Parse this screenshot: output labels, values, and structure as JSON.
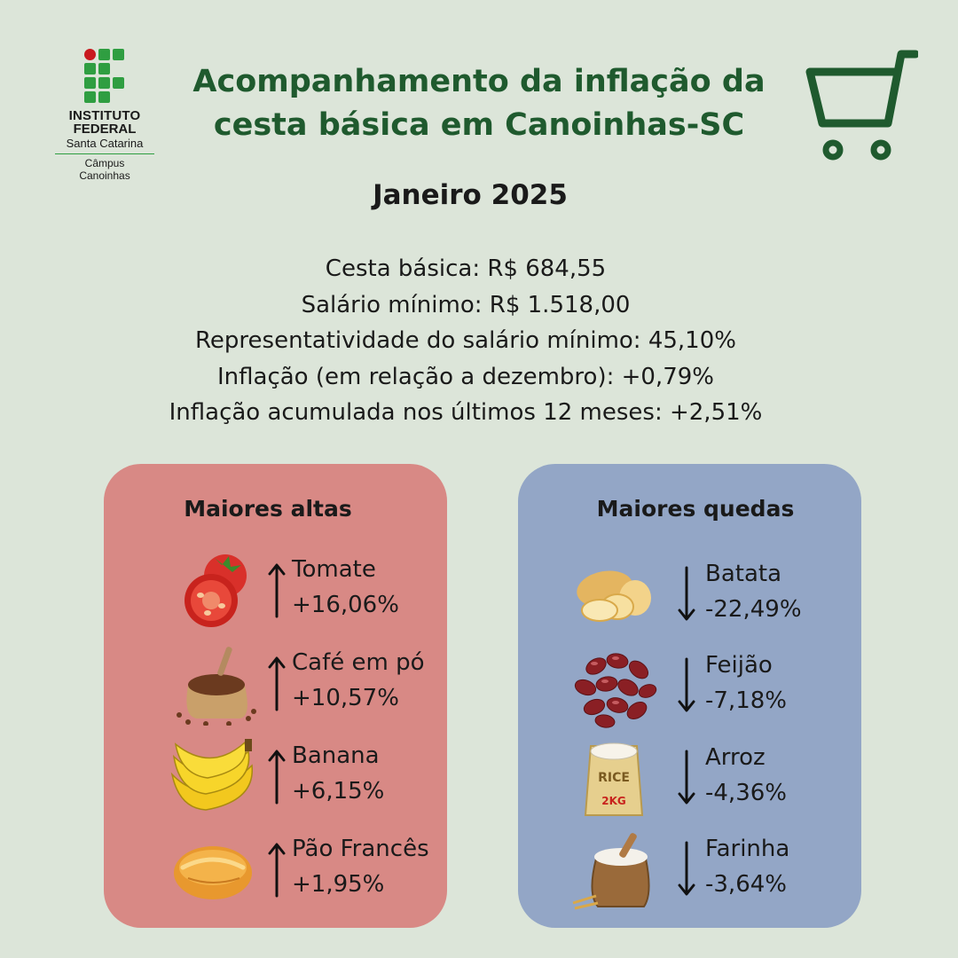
{
  "logo": {
    "line1": "INSTITUTO",
    "line2": "FEDERAL",
    "line3": "Santa Catarina",
    "line4": "Câmpus",
    "line5": "Canoinhas"
  },
  "header": {
    "title_line1": "Acompanhamento da inflação da",
    "title_line2": "cesta básica em Canoinhas-SC",
    "cart_icon": "shopping-cart-icon"
  },
  "month": "Janeiro 2025",
  "stats": [
    "Cesta básica: R$ 684,55",
    "Salário mínimo: R$ 1.518,00",
    "Representatividade do salário mínimo: 45,10%",
    "Inflação (em relação a dezembro): +0,79%",
    "Inflação acumulada nos últimos 12 meses: +2,51%"
  ],
  "altas": {
    "title": "Maiores altas",
    "items": [
      {
        "name": "Tomate",
        "value": "+16,06%",
        "icon": "tomato-icon"
      },
      {
        "name": "Café em pó",
        "value": "+10,57%",
        "icon": "coffee-sack-icon"
      },
      {
        "name": "Banana",
        "value": "+6,15%",
        "icon": "banana-icon"
      },
      {
        "name": "Pão Francês",
        "value": "+1,95%",
        "icon": "bread-roll-icon"
      }
    ]
  },
  "quedas": {
    "title": "Maiores quedas",
    "items": [
      {
        "name": "Batata",
        "value": "-22,49%",
        "icon": "potato-icon"
      },
      {
        "name": "Feijão",
        "value": "-7,18%",
        "icon": "beans-icon"
      },
      {
        "name": "Arroz",
        "value": "-4,36%",
        "icon": "rice-sack-icon"
      },
      {
        "name": "Farinha",
        "value": "-3,64%",
        "icon": "flour-sack-icon"
      }
    ],
    "rice_bag_text": "RICE",
    "rice_bag_weight": "2KG"
  },
  "colors": {
    "background": "#dce5d9",
    "title_green": "#1f5a2e",
    "altas_panel": "#d88985",
    "quedas_panel": "#93a6c6"
  }
}
